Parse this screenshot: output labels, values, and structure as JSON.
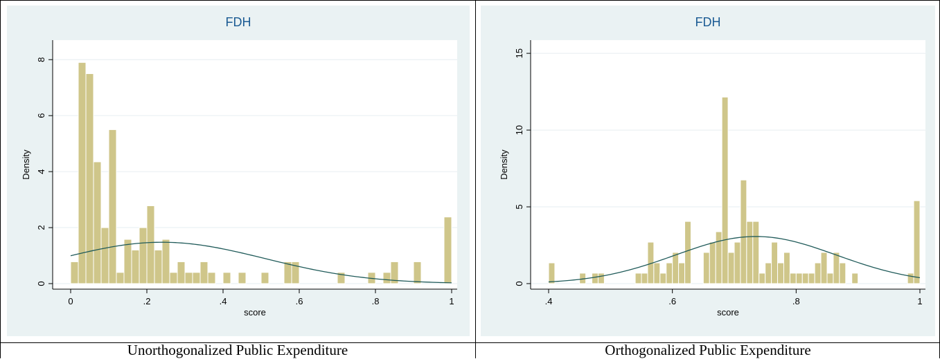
{
  "captions": {
    "left": "Unorthogonalized Public Expenditure",
    "right": "Orthogonalized Public Expenditure"
  },
  "colors": {
    "bar": "#cfc68a",
    "curve": "#1f5a59",
    "title": "#1b5b93",
    "panel_bg": "#eaf2f3"
  },
  "chart_data": [
    {
      "type": "bar",
      "title": "FDH",
      "xlabel": "score",
      "ylabel": "Density",
      "xlim": [
        0,
        1
      ],
      "ylim": [
        0,
        8.5
      ],
      "xticks": [
        0,
        0.2,
        0.4,
        0.6,
        0.8,
        1
      ],
      "xtick_labels": [
        "0",
        ".2",
        ".4",
        ".6",
        ".8",
        "1"
      ],
      "yticks": [
        0,
        2,
        4,
        6,
        8
      ],
      "ytick_labels": [
        "0",
        "2",
        "4",
        "6",
        "8"
      ],
      "grid": true,
      "bin_start": 0,
      "bin_width": 0.02,
      "values": [
        0.78,
        7.9,
        7.5,
        4.35,
        2.0,
        5.5,
        0.4,
        1.58,
        1.2,
        2.0,
        2.78,
        1.2,
        1.58,
        0.4,
        0.78,
        0.4,
        0.4,
        0.78,
        0.4,
        0,
        0.4,
        0,
        0.4,
        0,
        0,
        0.4,
        0,
        0,
        0.78,
        0.78,
        0,
        0,
        0,
        0,
        0,
        0.4,
        0,
        0,
        0,
        0.4,
        0,
        0.4,
        0.78,
        0,
        0,
        0.78,
        0,
        0,
        0,
        2.38
      ],
      "normal_curve": {
        "mean": 0.24,
        "sd": 0.27
      }
    },
    {
      "type": "bar",
      "title": "FDH",
      "xlabel": "score",
      "ylabel": "Density",
      "xlim": [
        0.4,
        1
      ],
      "ylim": [
        0,
        15.5
      ],
      "xticks": [
        0.4,
        0.6,
        0.8,
        1
      ],
      "xtick_labels": [
        ".4",
        ".6",
        ".8",
        "1"
      ],
      "yticks": [
        0,
        5,
        10,
        15
      ],
      "ytick_labels": [
        "0",
        "5",
        "10",
        "15"
      ],
      "grid": true,
      "bin_start": 0.4,
      "bin_width": 0.01,
      "values": [
        1.35,
        0,
        0,
        0,
        0,
        0.68,
        0,
        0.68,
        0.68,
        0,
        0,
        0,
        0,
        0,
        0.68,
        0.68,
        2.7,
        1.35,
        0.68,
        1.35,
        2.03,
        1.35,
        4.05,
        0,
        0,
        2.03,
        2.7,
        3.38,
        12.15,
        2.03,
        2.7,
        6.75,
        4.05,
        4.05,
        0.68,
        1.35,
        2.7,
        1.35,
        2.03,
        0.68,
        0.68,
        0.68,
        0.68,
        1.35,
        2.03,
        0.68,
        2.03,
        1.35,
        0,
        0.68,
        0,
        0,
        0,
        0,
        0,
        0,
        0,
        0,
        0.68,
        5.4
      ],
      "normal_curve": {
        "mean": 0.735,
        "sd": 0.13
      }
    }
  ]
}
